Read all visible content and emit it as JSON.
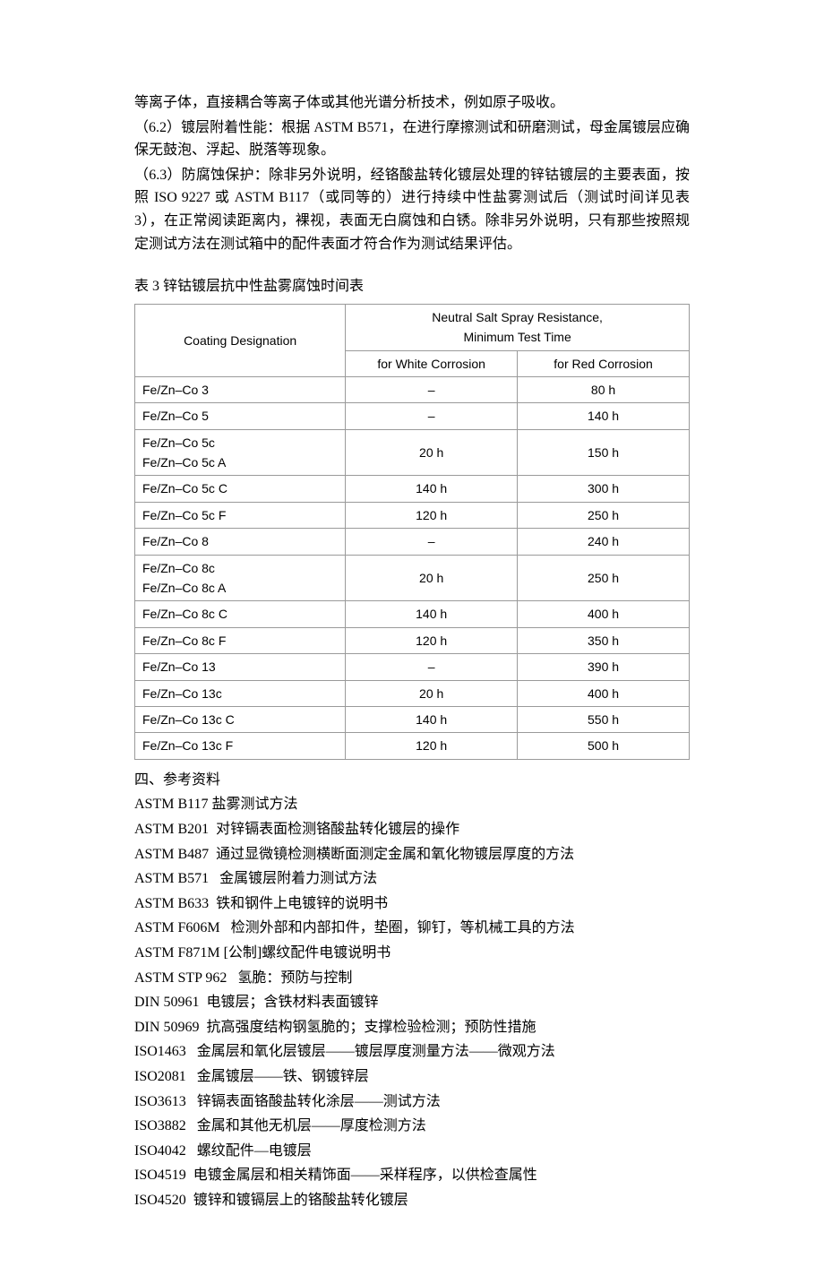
{
  "intro": {
    "line0": "等离子体，直接耦合等离子体或其他光谱分析技术，例如原子吸收。",
    "line1": "（6.2）镀层附着性能：根据 ASTM B571，在进行摩擦测试和研磨测试，母金属镀层应确保无鼓泡、浮起、脱落等现象。",
    "line2": "（6.3）防腐蚀保护：除非另外说明，经铬酸盐转化镀层处理的锌钴镀层的主要表面，按照 ISO 9227 或 ASTM B117（或同等的）进行持续中性盐雾测试后（测试时间详见表 3），在正常阅读距离内，裸视，表面无白腐蚀和白锈。除非另外说明，只有那些按照规定测试方法在测试箱中的配件表面才符合作为测试结果评估。"
  },
  "table": {
    "title": "表 3  锌钴镀层抗中性盐雾腐蚀时间表",
    "header_col1": "Coating Designation",
    "header_span": "Neutral Salt Spray Resistance,\nMinimum Test Time",
    "header_white": "for White Corrosion",
    "header_red": "for Red Corrosion",
    "rows": [
      {
        "d": "Fe/Zn–Co 3",
        "w": "–",
        "r": "80 h"
      },
      {
        "d": "Fe/Zn–Co 5",
        "w": "–",
        "r": "140 h"
      },
      {
        "d": "Fe/Zn–Co 5c\nFe/Zn–Co 5c A",
        "w": "20 h",
        "r": "150 h"
      },
      {
        "d": "Fe/Zn–Co 5c C",
        "w": "140 h",
        "r": "300 h"
      },
      {
        "d": "Fe/Zn–Co 5c F",
        "w": "120 h",
        "r": "250 h"
      },
      {
        "d": "Fe/Zn–Co 8",
        "w": "–",
        "r": "240 h"
      },
      {
        "d": "Fe/Zn–Co 8c\nFe/Zn–Co 8c A",
        "w": "20 h",
        "r": "250 h"
      },
      {
        "d": "Fe/Zn–Co 8c C",
        "w": "140 h",
        "r": "400 h"
      },
      {
        "d": "Fe/Zn–Co 8c F",
        "w": "120 h",
        "r": "350 h"
      },
      {
        "d": "Fe/Zn–Co 13",
        "w": "–",
        "r": "390 h"
      },
      {
        "d": "Fe/Zn–Co 13c",
        "w": "20 h",
        "r": "400 h"
      },
      {
        "d": "Fe/Zn–Co 13c C",
        "w": "140 h",
        "r": "550 h"
      },
      {
        "d": "Fe/Zn–Co 13c F",
        "w": "120 h",
        "r": "500 h"
      }
    ],
    "border_color": "#9a9a9a",
    "bg_color": "#ffffff",
    "font_size": 14
  },
  "refs": {
    "title": "四、参考资料",
    "items": [
      "ASTM B117 盐雾测试方法",
      "ASTM B201  对锌镉表面检测铬酸盐转化镀层的操作",
      "ASTM B487  通过显微镜检测横断面测定金属和氧化物镀层厚度的方法",
      "ASTM B571   金属镀层附着力测试方法",
      "ASTM B633  铁和钢件上电镀锌的说明书",
      "ASTM F606M   检测外部和内部扣件，垫圈，铆钉，等机械工具的方法",
      "ASTM F871M [公制]螺纹配件电镀说明书",
      "ASTM STP 962   氢脆：预防与控制",
      "DIN 50961  电镀层；含铁材料表面镀锌",
      "DIN 50969  抗高强度结构钢氢脆的；支撑检验检测；预防性措施",
      "ISO1463   金属层和氧化层镀层——镀层厚度测量方法——微观方法",
      "ISO2081   金属镀层——铁、钢镀锌层",
      "ISO3613   锌镉表面铬酸盐转化涂层——测试方法",
      "ISO3882   金属和其他无机层——厚度检测方法",
      "ISO4042   螺纹配件—电镀层",
      "ISO4519  电镀金属层和相关精饰面——采样程序，以供检查属性",
      "ISO4520  镀锌和镀镉层上的铬酸盐转化镀层"
    ]
  }
}
